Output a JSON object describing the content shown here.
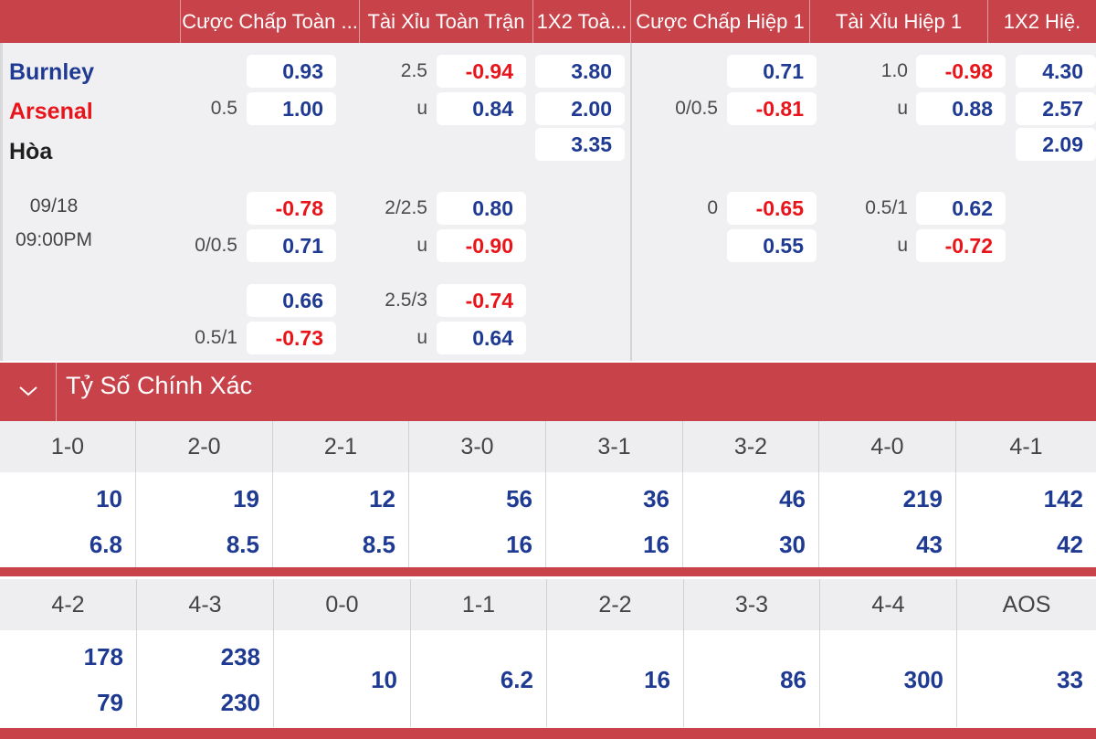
{
  "columns": [
    "Cược Chấp Toàn ...",
    "Tài Xỉu Toàn Trận",
    "1X2 Toà...",
    "Cược Chấp Hiệp 1",
    "Tài Xỉu Hiệp 1",
    "1X2 Hiệ."
  ],
  "match": {
    "home": "Burnley",
    "away": "Arsenal",
    "draw": "Hòa",
    "date": "09/18",
    "time": "09:00PM"
  },
  "rows": {
    "main": {
      "ah_home_line": "",
      "ah_home": "0.93",
      "ah_away_line": "0.5",
      "ah_away": "1.00",
      "ou_line": "2.5",
      "ou_over": "-0.94",
      "ou_u": "u",
      "ou_under": "0.84",
      "x12_1": "3.80",
      "x12_2": "2.00",
      "x12_x": "3.35",
      "h1_ah_home": "0.71",
      "h1_ah_line": "0/0.5",
      "h1_ah_away": "-0.81",
      "h1_ou_line": "1.0",
      "h1_ou_over": "-0.98",
      "h1_ou_u": "u",
      "h1_ou_under": "0.88",
      "h1_x12_1": "4.30",
      "h1_x12_2": "2.57",
      "h1_x12_x": "2.09"
    },
    "alt1": {
      "ah_home": "-0.78",
      "ah_line": "0/0.5",
      "ah_away": "0.71",
      "ou_line": "2/2.5",
      "ou_over": "0.80",
      "ou_u": "u",
      "ou_under": "-0.90",
      "h1_ah_line": "0",
      "h1_ah_home": "-0.65",
      "h1_ah_away": "0.55",
      "h1_ou_line": "0.5/1",
      "h1_ou_over": "0.62",
      "h1_ou_u": "u",
      "h1_ou_under": "-0.72"
    },
    "alt2": {
      "ah_home": "0.66",
      "ah_line": "0.5/1",
      "ah_away": "-0.73",
      "ou_line": "2.5/3",
      "ou_over": "-0.74",
      "ou_u": "u",
      "ou_under": "0.64"
    }
  },
  "exact_score": {
    "title": "Tỷ Số Chính Xác",
    "toggle_icon": "chevron-down-icon",
    "row1": {
      "labels": [
        "1-0",
        "2-0",
        "2-1",
        "3-0",
        "3-1",
        "3-2",
        "4-0",
        "4-1"
      ],
      "top": [
        "10",
        "19",
        "12",
        "56",
        "36",
        "46",
        "219",
        "142"
      ],
      "bottom": [
        "6.8",
        "8.5",
        "8.5",
        "16",
        "16",
        "30",
        "43",
        "42"
      ]
    },
    "row2": {
      "labels": [
        "4-2",
        "4-3",
        "0-0",
        "1-1",
        "2-2",
        "3-3",
        "4-4",
        "AOS"
      ],
      "top": [
        "178",
        "238",
        "10",
        "6.2",
        "16",
        "86",
        "300",
        "33"
      ],
      "bottom": [
        "79",
        "230",
        "",
        "",
        "",
        "",
        "",
        ""
      ]
    }
  },
  "colors": {
    "header_red": "#c8424a",
    "positive_blue": "#1f3a93",
    "negative_red": "#e8141a",
    "panel_bg": "#f0f0f2"
  }
}
